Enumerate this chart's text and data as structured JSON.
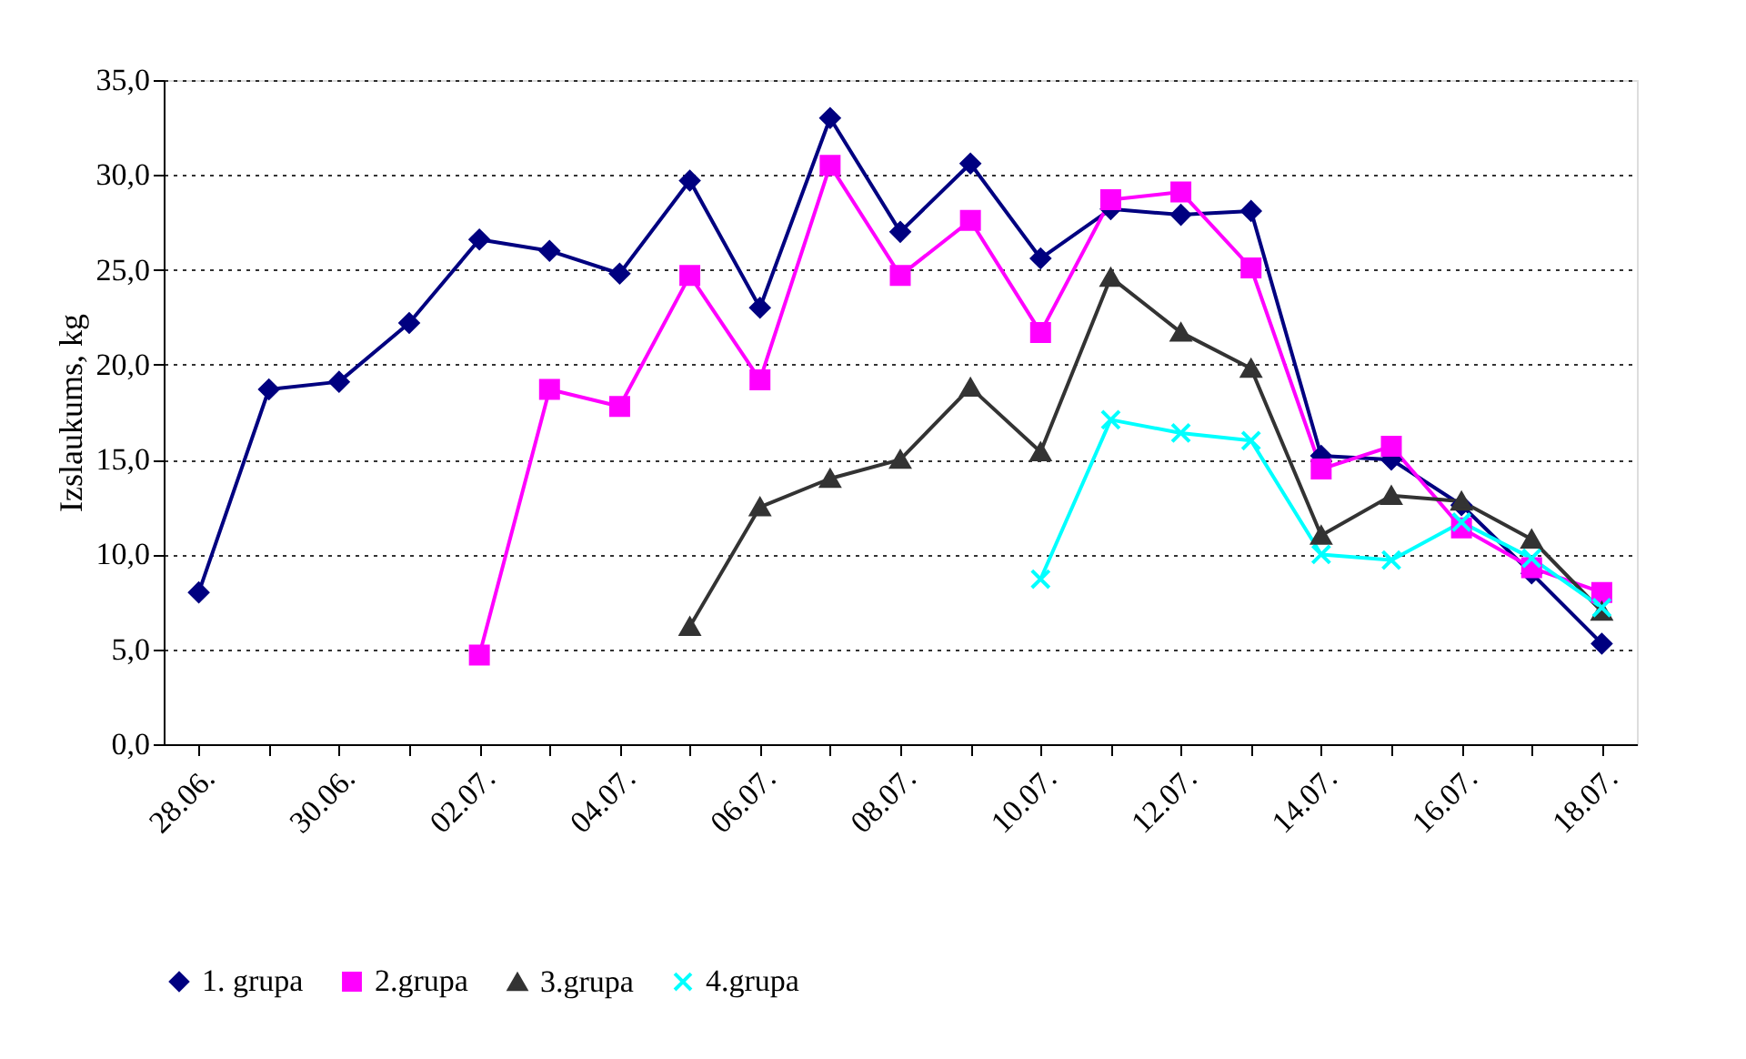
{
  "chart_data": {
    "type": "line",
    "ylabel": "Izslaukums, kg",
    "categories": [
      "28.06.",
      null,
      "30.06.",
      null,
      "02.07.",
      null,
      "04.07.",
      null,
      "06.07.",
      null,
      "08.07.",
      null,
      "10.07.",
      null,
      "12.07.",
      null,
      "14.07.",
      null,
      "16.07.",
      null,
      "18.07."
    ],
    "series": [
      {
        "name": "1. grupa",
        "color": "#000080",
        "marker": "diamond",
        "values": [
          8.0,
          18.7,
          19.1,
          22.2,
          26.6,
          26.0,
          24.8,
          29.7,
          23.0,
          33.0,
          27.0,
          30.6,
          25.6,
          28.2,
          27.9,
          28.1,
          15.2,
          15.0,
          12.6,
          9.0,
          5.3
        ]
      },
      {
        "name": "2.grupa",
        "color": "#ff00ff",
        "marker": "square",
        "values": [
          null,
          null,
          null,
          null,
          4.7,
          18.7,
          17.8,
          24.7,
          19.2,
          30.5,
          24.7,
          27.6,
          21.7,
          28.7,
          29.1,
          25.1,
          14.5,
          15.7,
          11.4,
          9.3,
          8.0
        ]
      },
      {
        "name": "3.grupa",
        "color": "#333333",
        "marker": "triangle",
        "values": [
          null,
          null,
          null,
          null,
          null,
          null,
          null,
          6.2,
          12.5,
          14.0,
          15.0,
          18.8,
          15.4,
          24.6,
          21.7,
          19.8,
          11.0,
          13.1,
          12.8,
          10.8,
          7.0
        ]
      },
      {
        "name": "4.grupa",
        "color": "#00ffff",
        "marker": "cross",
        "values": [
          null,
          null,
          null,
          null,
          null,
          null,
          null,
          null,
          null,
          null,
          null,
          null,
          8.7,
          17.1,
          16.4,
          16.0,
          10.0,
          9.7,
          11.7,
          9.8,
          7.2
        ]
      }
    ],
    "ylim": [
      0,
      35
    ],
    "yticks": [
      {
        "value": 0,
        "label": "0,0"
      },
      {
        "value": 5,
        "label": "5,0"
      },
      {
        "value": 10,
        "label": "10,0"
      },
      {
        "value": 15,
        "label": "15,0"
      },
      {
        "value": 20,
        "label": "20,0"
      },
      {
        "value": 25,
        "label": "25,0"
      },
      {
        "value": 30,
        "label": "30,0"
      },
      {
        "value": 35,
        "label": "35,0"
      }
    ],
    "grid": "y",
    "legend": "bottom"
  }
}
